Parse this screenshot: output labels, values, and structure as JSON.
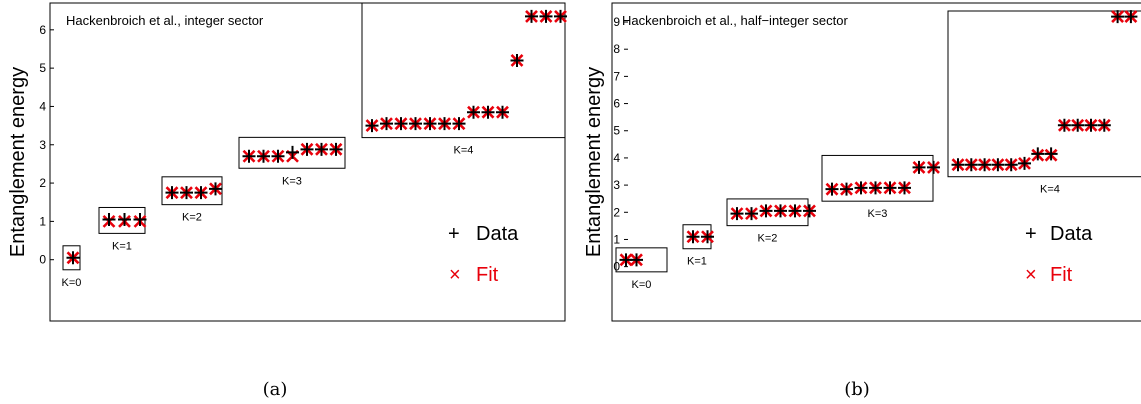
{
  "chart_data": [
    {
      "type": "scatter",
      "title": "Hackenbroich et al., integer sector",
      "ylabel": "Entanglement energy",
      "ylim": [
        -1.6,
        6.7
      ],
      "yticks": [
        0,
        1,
        2,
        3,
        4,
        5,
        6
      ],
      "caption": "(a)",
      "legend": {
        "placement": "lower-right",
        "entries": [
          "Data",
          "Fit"
        ]
      },
      "series": [
        {
          "name": "Data",
          "marker": "+",
          "color": "#000000"
        },
        {
          "name": "Fit",
          "marker": "x",
          "color": "#e8000b"
        }
      ],
      "groups": [
        {
          "label": "K=0",
          "data": [
            0.05
          ],
          "fit": [
            0.05
          ]
        },
        {
          "label": "K=1",
          "data": [
            1.05,
            1.05,
            1.05
          ],
          "fit": [
            1.0,
            1.0,
            1.0
          ]
        },
        {
          "label": "K=2",
          "data": [
            1.75,
            1.75,
            1.75,
            1.85
          ],
          "fit": [
            1.75,
            1.75,
            1.75,
            1.85
          ]
        },
        {
          "label": "K=3",
          "data": [
            2.7,
            2.7,
            2.7,
            2.8,
            2.88,
            2.88,
            2.88
          ],
          "fit": [
            2.7,
            2.7,
            2.7,
            2.7,
            2.88,
            2.88,
            2.88
          ]
        },
        {
          "label": "K=4",
          "data": [
            3.5,
            3.55,
            3.55,
            3.55,
            3.55,
            3.55,
            3.55,
            3.85,
            3.85,
            3.85,
            5.2,
            6.35,
            6.35,
            6.35
          ],
          "fit": [
            3.5,
            3.55,
            3.55,
            3.55,
            3.55,
            3.55,
            3.55,
            3.85,
            3.85,
            3.85,
            5.2,
            6.35,
            6.35,
            6.35
          ]
        }
      ]
    },
    {
      "type": "scatter",
      "title": "Hackenbroich et al., half−integer sector",
      "ylabel": "Entanglement energy",
      "ylim": [
        -2.0,
        9.7
      ],
      "yticks": [
        0,
        1,
        2,
        3,
        4,
        5,
        6,
        7,
        8,
        9
      ],
      "caption": "(b)",
      "legend": {
        "placement": "lower-right",
        "entries": [
          "Data",
          "Fit"
        ]
      },
      "series": [
        {
          "name": "Data",
          "marker": "+",
          "color": "#000000"
        },
        {
          "name": "Fit",
          "marker": "x",
          "color": "#e8000b"
        }
      ],
      "groups": [
        {
          "label": "K=0",
          "data": [
            0.25,
            0.25
          ],
          "fit": [
            0.25,
            0.25
          ]
        },
        {
          "label": "K=1",
          "data": [
            1.1,
            1.1
          ],
          "fit": [
            1.1,
            1.1
          ]
        },
        {
          "label": "K=2",
          "data": [
            1.95,
            1.95,
            2.05,
            2.05,
            2.05,
            2.05
          ],
          "fit": [
            1.95,
            1.95,
            2.05,
            2.05,
            2.05,
            2.05
          ]
        },
        {
          "label": "K=3",
          "data": [
            2.85,
            2.85,
            2.9,
            2.9,
            2.9,
            2.9,
            3.65,
            3.65
          ],
          "fit": [
            2.85,
            2.85,
            2.9,
            2.9,
            2.9,
            2.9,
            3.65,
            3.65
          ]
        },
        {
          "label": "K=4",
          "data": [
            3.75,
            3.75,
            3.75,
            3.75,
            3.75,
            3.8,
            4.15,
            4.15,
            5.2,
            5.2,
            5.2,
            5.2,
            9.2,
            9.2
          ],
          "fit": [
            3.75,
            3.75,
            3.75,
            3.75,
            3.75,
            3.8,
            4.1,
            4.1,
            5.2,
            5.2,
            5.2,
            5.2,
            9.2,
            9.2
          ]
        }
      ]
    }
  ]
}
